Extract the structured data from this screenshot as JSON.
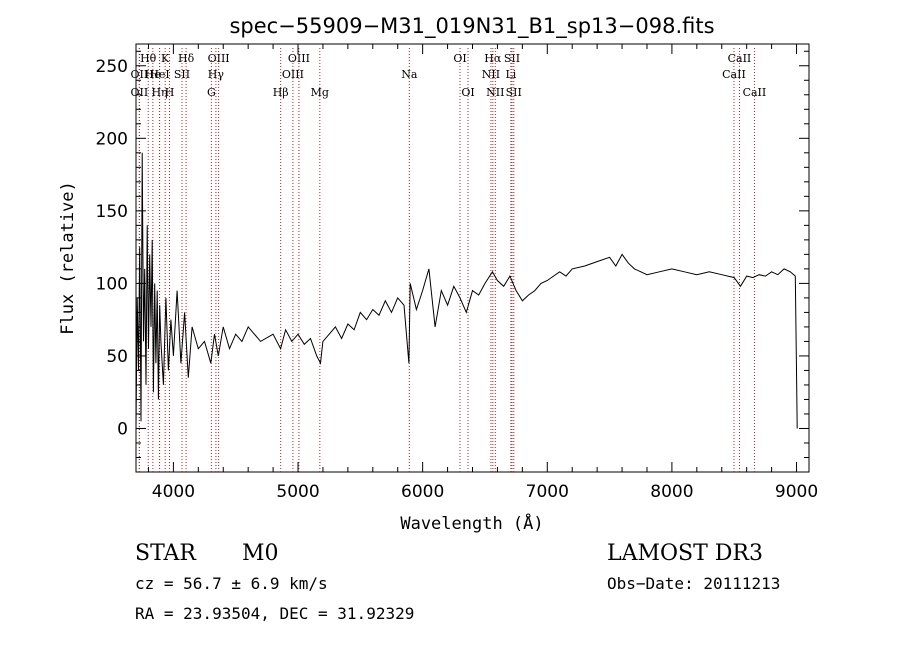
{
  "chart_data": {
    "type": "line",
    "title": "spec−55909−M31_019N31_B1_sp13−098.fits",
    "xlabel": "Wavelength (Å)",
    "ylabel": "Flux (relative)",
    "xlim": [
      3700,
      9100
    ],
    "ylim": [
      -30,
      265
    ],
    "xticks": [
      4000,
      5000,
      6000,
      7000,
      8000,
      9000
    ],
    "yticks": [
      0,
      50,
      100,
      150,
      200,
      250
    ],
    "line_color": "#000000",
    "marker_color": "#b22222",
    "series": [
      {
        "name": "spectrum",
        "x": [
          3700,
          3710,
          3720,
          3730,
          3740,
          3750,
          3760,
          3770,
          3780,
          3790,
          3800,
          3810,
          3820,
          3830,
          3840,
          3850,
          3860,
          3870,
          3880,
          3890,
          3900,
          3920,
          3940,
          3960,
          3980,
          4000,
          4030,
          4060,
          4090,
          4120,
          4150,
          4200,
          4250,
          4300,
          4330,
          4360,
          4400,
          4450,
          4500,
          4550,
          4600,
          4700,
          4800,
          4860,
          4900,
          4950,
          5000,
          5050,
          5100,
          5150,
          5180,
          5200,
          5250,
          5300,
          5350,
          5400,
          5450,
          5500,
          5550,
          5600,
          5650,
          5700,
          5750,
          5800,
          5850,
          5890,
          5900,
          5950,
          6000,
          6050,
          6100,
          6150,
          6200,
          6250,
          6300,
          6350,
          6400,
          6450,
          6500,
          6560,
          6600,
          6650,
          6700,
          6750,
          6800,
          6850,
          6900,
          6950,
          7000,
          7050,
          7100,
          7150,
          7200,
          7300,
          7400,
          7500,
          7550,
          7600,
          7650,
          7700,
          7750,
          7800,
          7900,
          8000,
          8100,
          8200,
          8300,
          8400,
          8500,
          8550,
          8600,
          8650,
          8700,
          8750,
          8800,
          8850,
          8900,
          8950,
          8990,
          9000,
          9005
        ],
        "y": [
          0,
          90,
          40,
          125,
          5,
          190,
          60,
          110,
          30,
          140,
          55,
          120,
          70,
          130,
          25,
          100,
          45,
          95,
          20,
          85,
          60,
          30,
          90,
          40,
          75,
          50,
          95,
          45,
          80,
          35,
          70,
          55,
          60,
          45,
          65,
          50,
          70,
          55,
          65,
          60,
          70,
          60,
          65,
          55,
          68,
          60,
          65,
          58,
          62,
          50,
          45,
          60,
          65,
          70,
          62,
          72,
          68,
          80,
          75,
          82,
          78,
          88,
          80,
          90,
          85,
          45,
          100,
          82,
          95,
          110,
          70,
          95,
          85,
          98,
          90,
          80,
          95,
          92,
          100,
          108,
          102,
          98,
          105,
          95,
          88,
          92,
          95,
          100,
          102,
          105,
          108,
          105,
          110,
          112,
          115,
          118,
          112,
          120,
          114,
          110,
          108,
          106,
          108,
          110,
          108,
          106,
          108,
          106,
          104,
          98,
          105,
          104,
          106,
          105,
          108,
          106,
          110,
          108,
          105,
          40,
          0
        ]
      }
    ],
    "lines": [
      {
        "label": "OII",
        "x": 3727,
        "row": 2
      },
      {
        "label": "OII",
        "x": 3727,
        "row": 3
      },
      {
        "label": "Hθ",
        "x": 3798,
        "row": 1
      },
      {
        "label": "He",
        "x": 3835,
        "row": 2
      },
      {
        "label": "Hη",
        "x": 3889,
        "row": 3
      },
      {
        "label": "K",
        "x": 3934,
        "row": 1
      },
      {
        "label": "HeI",
        "x": 3889,
        "row": 2
      },
      {
        "label": "H",
        "x": 3969,
        "row": 3
      },
      {
        "label": "SII",
        "x": 4069,
        "row": 2
      },
      {
        "label": "Hδ",
        "x": 4102,
        "row": 1
      },
      {
        "label": "OIII",
        "x": 4363,
        "row": 1
      },
      {
        "label": "Hγ",
        "x": 4341,
        "row": 2
      },
      {
        "label": "G",
        "x": 4305,
        "row": 3
      },
      {
        "label": "Hβ",
        "x": 4861,
        "row": 3
      },
      {
        "label": "OIII",
        "x": 5007,
        "row": 1
      },
      {
        "label": "OIII",
        "x": 4959,
        "row": 2
      },
      {
        "label": "Mg",
        "x": 5175,
        "row": 3
      },
      {
        "label": "Na",
        "x": 5893,
        "row": 2
      },
      {
        "label": "OI",
        "x": 6300,
        "row": 1
      },
      {
        "label": "OI",
        "x": 6364,
        "row": 3
      },
      {
        "label": "Hα",
        "x": 6563,
        "row": 1
      },
      {
        "label": "NII",
        "x": 6548,
        "row": 2
      },
      {
        "label": "NII",
        "x": 6583,
        "row": 3
      },
      {
        "label": "SII",
        "x": 6717,
        "row": 1
      },
      {
        "label": "Li",
        "x": 6708,
        "row": 2
      },
      {
        "label": "SII",
        "x": 6731,
        "row": 3
      },
      {
        "label": "CaII",
        "x": 8542,
        "row": 1
      },
      {
        "label": "CaII",
        "x": 8498,
        "row": 2
      },
      {
        "label": "CaII",
        "x": 8662,
        "row": 3
      }
    ]
  },
  "annotations": {
    "class_label": "STAR",
    "subclass": "M0",
    "survey": "LAMOST DR3",
    "cz": "cz = 56.7 ± 6.9 km/s",
    "obs_date": "Obs−Date: 20111213",
    "coords": "RA =  23.93504, DEC =  31.92329"
  }
}
